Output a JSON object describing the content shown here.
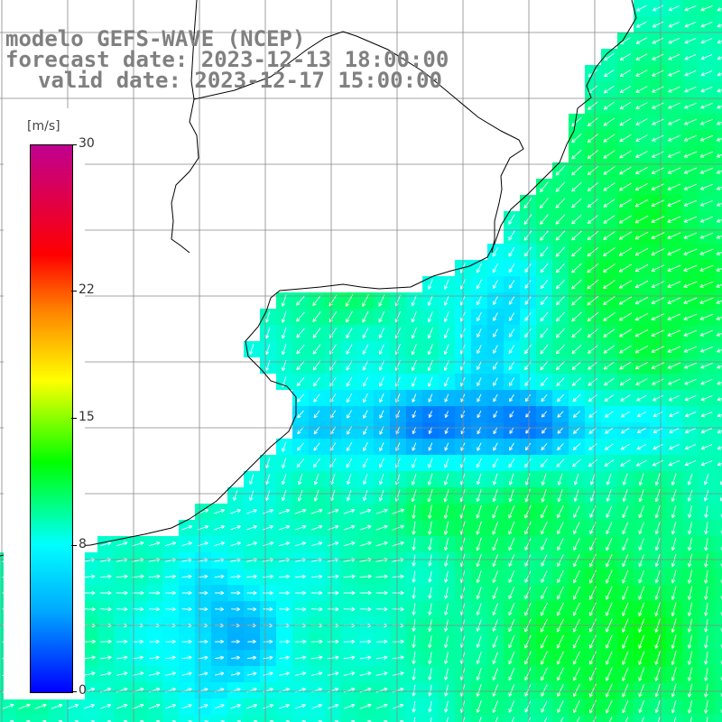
{
  "title": {
    "line1": "modelo GEFS-WAVE (NCEP)",
    "line2": "forecast date: 2023-12-13 18:00:00",
    "line3": "valid date: 2023-12-17 15:00:00"
  },
  "colorbar": {
    "unit": "[m/s]",
    "ticks": [
      "30",
      "22",
      "15",
      "8",
      "0"
    ],
    "tick_values": [
      30,
      22,
      15,
      8,
      0
    ],
    "colors": [
      "#0000ff",
      "#00aaff",
      "#00ffff",
      "#00ff00",
      "#ffff00",
      "#ff8000",
      "#ff0000",
      "#c00090"
    ]
  },
  "map": {
    "variable": "wind speed",
    "grid_lines": "on",
    "land_color": "#ffffff",
    "coast_color": "#000000",
    "arrow_color": "#ffffff"
  }
}
